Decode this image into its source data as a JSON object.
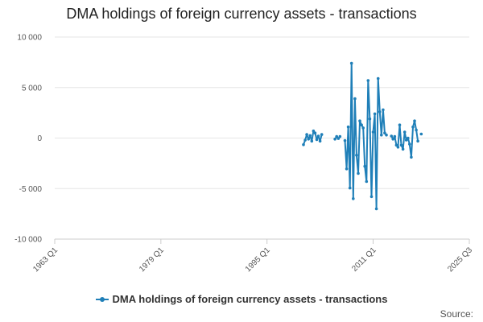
{
  "title": "DMA holdings of foreign currency assets - transactions",
  "source_label": "Source:",
  "colors": {
    "series": "#1f7fb8",
    "grid": "#e6e6e6",
    "axis": "#cccccc"
  },
  "chart_data": {
    "type": "line",
    "title": "DMA holdings of foreign currency assets - transactions",
    "xlabel": "",
    "ylabel": "",
    "ylim": [
      -10000,
      10000
    ],
    "y_ticks": [
      -10000,
      -5000,
      0,
      5000,
      10000
    ],
    "y_tick_labels": [
      "-10 000",
      "-5 000",
      "0",
      "5 000",
      "10 000"
    ],
    "xlim": [
      1963.0,
      2025.5
    ],
    "x_ticks": [
      1963.0,
      1979.0,
      1995.0,
      2011.0,
      2025.5
    ],
    "x_tick_labels": [
      "1963 Q1",
      "1979 Q1",
      "1995 Q1",
      "2011 Q1",
      "2025 Q3"
    ],
    "grid": true,
    "legend_position": "bottom",
    "series": [
      {
        "name": "DMA holdings of foreign currency assets - transactions",
        "segments": [
          [
            [
              2000.5,
              -650
            ],
            [
              2000.75,
              -200
            ],
            [
              2001.0,
              350
            ],
            [
              2001.25,
              -100
            ],
            [
              2001.5,
              250
            ],
            [
              2001.75,
              -300
            ],
            [
              2002.0,
              700
            ],
            [
              2002.25,
              500
            ],
            [
              2002.5,
              -150
            ],
            [
              2002.75,
              200
            ],
            [
              2003.0,
              -300
            ],
            [
              2003.25,
              350
            ]
          ],
          [
            [
              2005.25,
              -100
            ],
            [
              2005.5,
              150
            ],
            [
              2005.75,
              -50
            ],
            [
              2006.0,
              150
            ]
          ],
          [
            [
              2006.75,
              -250
            ],
            [
              2007.0,
              -3050
            ],
            [
              2007.25,
              1100
            ],
            [
              2007.5,
              -4950
            ],
            [
              2007.75,
              7400
            ],
            [
              2008.0,
              -6000
            ],
            [
              2008.25,
              3900
            ],
            [
              2008.5,
              -1700
            ],
            [
              2008.75,
              -3500
            ],
            [
              2009.0,
              1700
            ],
            [
              2009.25,
              1300
            ],
            [
              2009.5,
              1000
            ],
            [
              2009.75,
              -2800
            ],
            [
              2010.0,
              -4300
            ],
            [
              2010.25,
              5700
            ],
            [
              2010.5,
              1900
            ],
            [
              2010.75,
              -5800
            ],
            [
              2011.0,
              600
            ],
            [
              2011.25,
              2400
            ],
            [
              2011.5,
              -7000
            ],
            [
              2011.75,
              5900
            ],
            [
              2012.0,
              2600
            ],
            [
              2012.25,
              300
            ],
            [
              2012.5,
              2800
            ],
            [
              2012.75,
              500
            ],
            [
              2013.0,
              300
            ]
          ],
          [
            [
              2013.75,
              200
            ],
            [
              2014.0,
              -100
            ],
            [
              2014.25,
              150
            ],
            [
              2014.5,
              -700
            ],
            [
              2014.75,
              -900
            ],
            [
              2015.0,
              1300
            ],
            [
              2015.25,
              -700
            ],
            [
              2015.5,
              -1100
            ],
            [
              2015.75,
              600
            ],
            [
              2016.0,
              -200
            ],
            [
              2016.25,
              0
            ],
            [
              2016.5,
              -600
            ],
            [
              2016.75,
              -1900
            ],
            [
              2017.0,
              1100
            ],
            [
              2017.25,
              1700
            ],
            [
              2017.5,
              800
            ],
            [
              2017.75,
              -300
            ]
          ],
          [
            [
              2018.25,
              400
            ]
          ]
        ]
      }
    ]
  }
}
